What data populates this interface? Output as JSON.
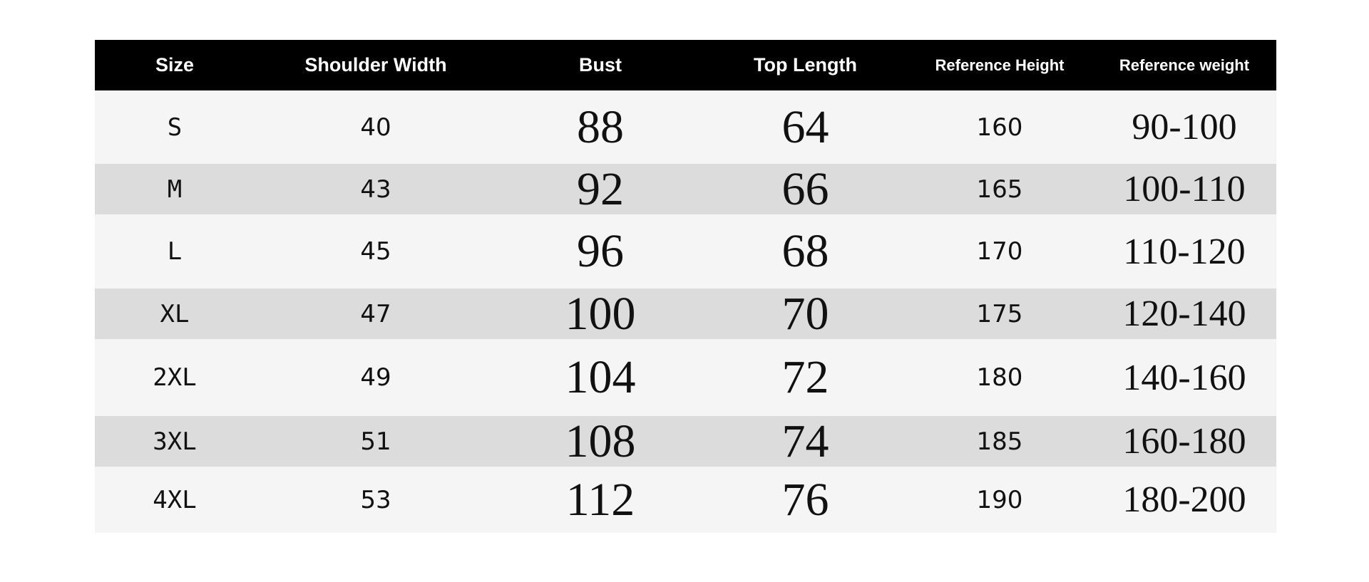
{
  "headers": [
    "Size",
    "Shoulder Width",
    "Bust",
    "Top Length",
    "Reference Height",
    "Reference weight"
  ],
  "rows": [
    [
      "S",
      "40",
      "88",
      "64",
      "160",
      "90-100"
    ],
    [
      "M",
      "43",
      "92",
      "66",
      "165",
      "100-110"
    ],
    [
      "L",
      "45",
      "96",
      "68",
      "170",
      "110-120"
    ],
    [
      "XL",
      "47",
      "100",
      "70",
      "175",
      "120-140"
    ],
    [
      "2XL",
      "49",
      "104",
      "72",
      "180",
      "140-160"
    ],
    [
      "3XL",
      "51",
      "108",
      "74",
      "185",
      "160-180"
    ],
    [
      "4XL",
      "53",
      "112",
      "76",
      "190",
      "180-200"
    ]
  ]
}
